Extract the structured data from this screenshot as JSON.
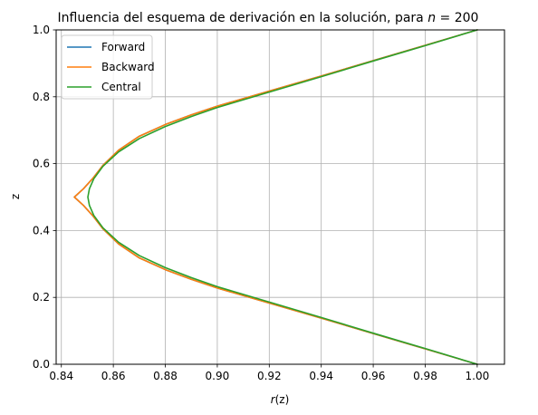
{
  "chart_data": {
    "type": "line",
    "title_prefix": "Influencia del esquema de derivación en la solución, para ",
    "title_var": "n",
    "title_suffix": " = 200",
    "xlabel_var": "r",
    "xlabel_arg": "(z)",
    "ylabel": "z",
    "xlim": [
      0.838,
      1.0105
    ],
    "ylim": [
      0.0,
      1.0
    ],
    "xticks": [
      0.84,
      0.86,
      0.88,
      0.9,
      0.92,
      0.94,
      0.96,
      0.98,
      1.0
    ],
    "xtick_labels": [
      "0.84",
      "0.86",
      "0.88",
      "0.90",
      "0.92",
      "0.94",
      "0.96",
      "0.98",
      "1.00"
    ],
    "yticks": [
      0.0,
      0.2,
      0.4,
      0.6,
      0.8,
      1.0
    ],
    "ytick_labels": [
      "0.0",
      "0.2",
      "0.4",
      "0.6",
      "0.8",
      "1.0"
    ],
    "grid": true,
    "legend_position": "top-left",
    "series": [
      {
        "name": "Forward",
        "color": "#1f77b4",
        "points": [
          [
            1.0,
            0.0
          ],
          [
            0.98,
            0.046
          ],
          [
            0.96,
            0.092
          ],
          [
            0.94,
            0.138
          ],
          [
            0.92,
            0.183
          ],
          [
            0.9,
            0.228
          ],
          [
            0.89,
            0.254
          ],
          [
            0.88,
            0.283
          ],
          [
            0.87,
            0.318
          ],
          [
            0.862,
            0.36
          ],
          [
            0.856,
            0.405
          ],
          [
            0.852,
            0.445
          ],
          [
            0.8485,
            0.475
          ],
          [
            0.845,
            0.5
          ],
          [
            0.8485,
            0.525
          ],
          [
            0.852,
            0.555
          ],
          [
            0.856,
            0.595
          ],
          [
            0.862,
            0.64
          ],
          [
            0.87,
            0.682
          ],
          [
            0.88,
            0.717
          ],
          [
            0.89,
            0.746
          ],
          [
            0.9,
            0.772
          ],
          [
            0.92,
            0.817
          ],
          [
            0.94,
            0.862
          ],
          [
            0.96,
            0.908
          ],
          [
            0.98,
            0.954
          ],
          [
            1.0,
            1.0
          ]
        ]
      },
      {
        "name": "Backward",
        "color": "#ff7f0e",
        "points": [
          [
            1.0,
            0.0
          ],
          [
            0.98,
            0.046
          ],
          [
            0.96,
            0.092
          ],
          [
            0.94,
            0.138
          ],
          [
            0.92,
            0.183
          ],
          [
            0.9,
            0.228
          ],
          [
            0.89,
            0.254
          ],
          [
            0.88,
            0.283
          ],
          [
            0.87,
            0.318
          ],
          [
            0.862,
            0.36
          ],
          [
            0.856,
            0.405
          ],
          [
            0.852,
            0.445
          ],
          [
            0.8485,
            0.475
          ],
          [
            0.845,
            0.5
          ],
          [
            0.8485,
            0.525
          ],
          [
            0.852,
            0.555
          ],
          [
            0.856,
            0.595
          ],
          [
            0.862,
            0.64
          ],
          [
            0.87,
            0.682
          ],
          [
            0.88,
            0.717
          ],
          [
            0.89,
            0.746
          ],
          [
            0.9,
            0.772
          ],
          [
            0.92,
            0.817
          ],
          [
            0.94,
            0.862
          ],
          [
            0.96,
            0.908
          ],
          [
            0.98,
            0.954
          ],
          [
            1.0,
            1.0
          ]
        ]
      },
      {
        "name": "Central",
        "color": "#2ca02c",
        "points": [
          [
            1.0,
            0.0
          ],
          [
            0.98,
            0.047
          ],
          [
            0.96,
            0.093
          ],
          [
            0.94,
            0.14
          ],
          [
            0.92,
            0.186
          ],
          [
            0.9,
            0.232
          ],
          [
            0.89,
            0.259
          ],
          [
            0.88,
            0.289
          ],
          [
            0.87,
            0.325
          ],
          [
            0.862,
            0.365
          ],
          [
            0.856,
            0.408
          ],
          [
            0.8525,
            0.445
          ],
          [
            0.8508,
            0.475
          ],
          [
            0.8502,
            0.5
          ],
          [
            0.8508,
            0.525
          ],
          [
            0.8525,
            0.555
          ],
          [
            0.856,
            0.592
          ],
          [
            0.862,
            0.635
          ],
          [
            0.87,
            0.675
          ],
          [
            0.88,
            0.711
          ],
          [
            0.89,
            0.741
          ],
          [
            0.9,
            0.768
          ],
          [
            0.92,
            0.814
          ],
          [
            0.94,
            0.86
          ],
          [
            0.96,
            0.907
          ],
          [
            0.98,
            0.953
          ],
          [
            1.0,
            1.0
          ]
        ]
      }
    ]
  }
}
